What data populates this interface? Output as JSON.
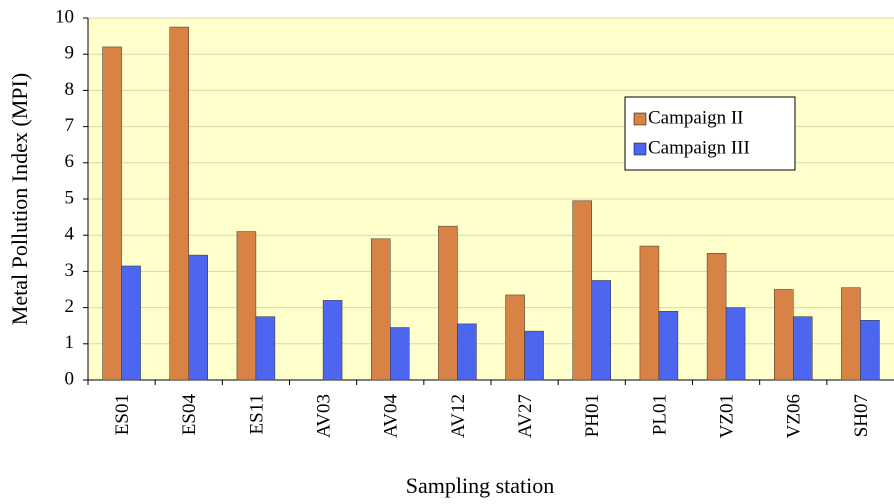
{
  "chart_data": {
    "type": "bar",
    "x_label": "Sampling station",
    "y_label": "Metal Pollution Index (MPI)",
    "categories": [
      "ES01",
      "ES04",
      "ES11",
      "AV03",
      "AV04",
      "AV12",
      "AV27",
      "PH01",
      "PL01",
      "VZ01",
      "VZ06",
      "SH07"
    ],
    "series": [
      {
        "name": "Campaign II",
        "color": "#d98245",
        "values": [
          9.2,
          9.75,
          4.1,
          null,
          3.9,
          4.25,
          2.35,
          4.95,
          3.7,
          3.5,
          2.5,
          2.55
        ]
      },
      {
        "name": "Campaign III",
        "color": "#4d66f0",
        "values": [
          3.15,
          3.45,
          1.75,
          2.2,
          1.45,
          1.55,
          1.35,
          2.75,
          1.9,
          2.0,
          1.75,
          1.65
        ]
      }
    ],
    "ylim": [
      0,
      10
    ],
    "yticks": [
      0,
      1,
      2,
      3,
      4,
      5,
      6,
      7,
      8,
      9,
      10
    ],
    "grid": true
  }
}
